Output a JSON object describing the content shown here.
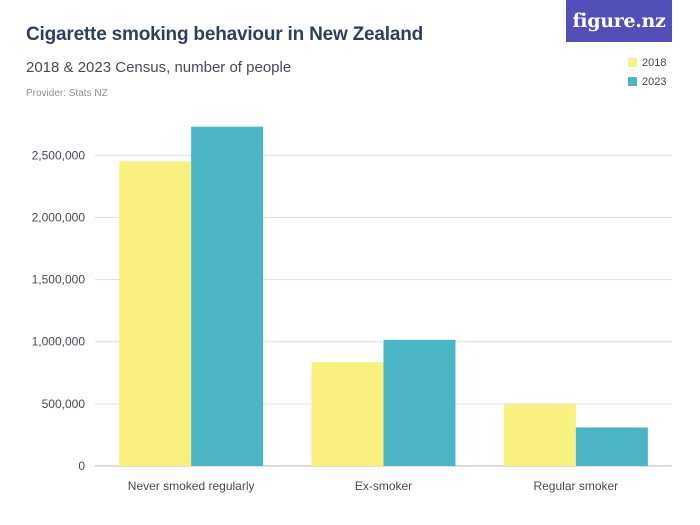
{
  "header": {
    "title": "Cigarette smoking behaviour in New Zealand",
    "subtitle": "2018 & 2023 Census, number of people",
    "provider": "Provider: Stats NZ",
    "logo": "figure.nz"
  },
  "colors": {
    "series_2018": "#f8f07f",
    "series_2023": "#4cb5c3",
    "gridline": "#dddddd",
    "axis_text": "#444a55",
    "logo_bg": "#5250b8"
  },
  "chart_data": {
    "type": "bar",
    "title": "Cigarette smoking behaviour in New Zealand",
    "subtitle": "2018 & 2023 Census, number of people",
    "categories": [
      "Never smoked regularly",
      "Ex-smoker",
      "Regular smoker"
    ],
    "series": [
      {
        "name": "2018",
        "color": "#f8f07f",
        "values": [
          2450000,
          835000,
          495000
        ]
      },
      {
        "name": "2023",
        "color": "#4cb5c3",
        "values": [
          2730000,
          1015000,
          310000
        ]
      }
    ],
    "ylim": [
      0,
      2800000
    ],
    "yticks": [
      0,
      500000,
      1000000,
      1500000,
      2000000,
      2500000
    ],
    "ytick_labels": [
      "0",
      "500,000",
      "1,000,000",
      "1,500,000",
      "2,000,000",
      "2,500,000"
    ],
    "grid": true,
    "legend_position": "top-right"
  }
}
